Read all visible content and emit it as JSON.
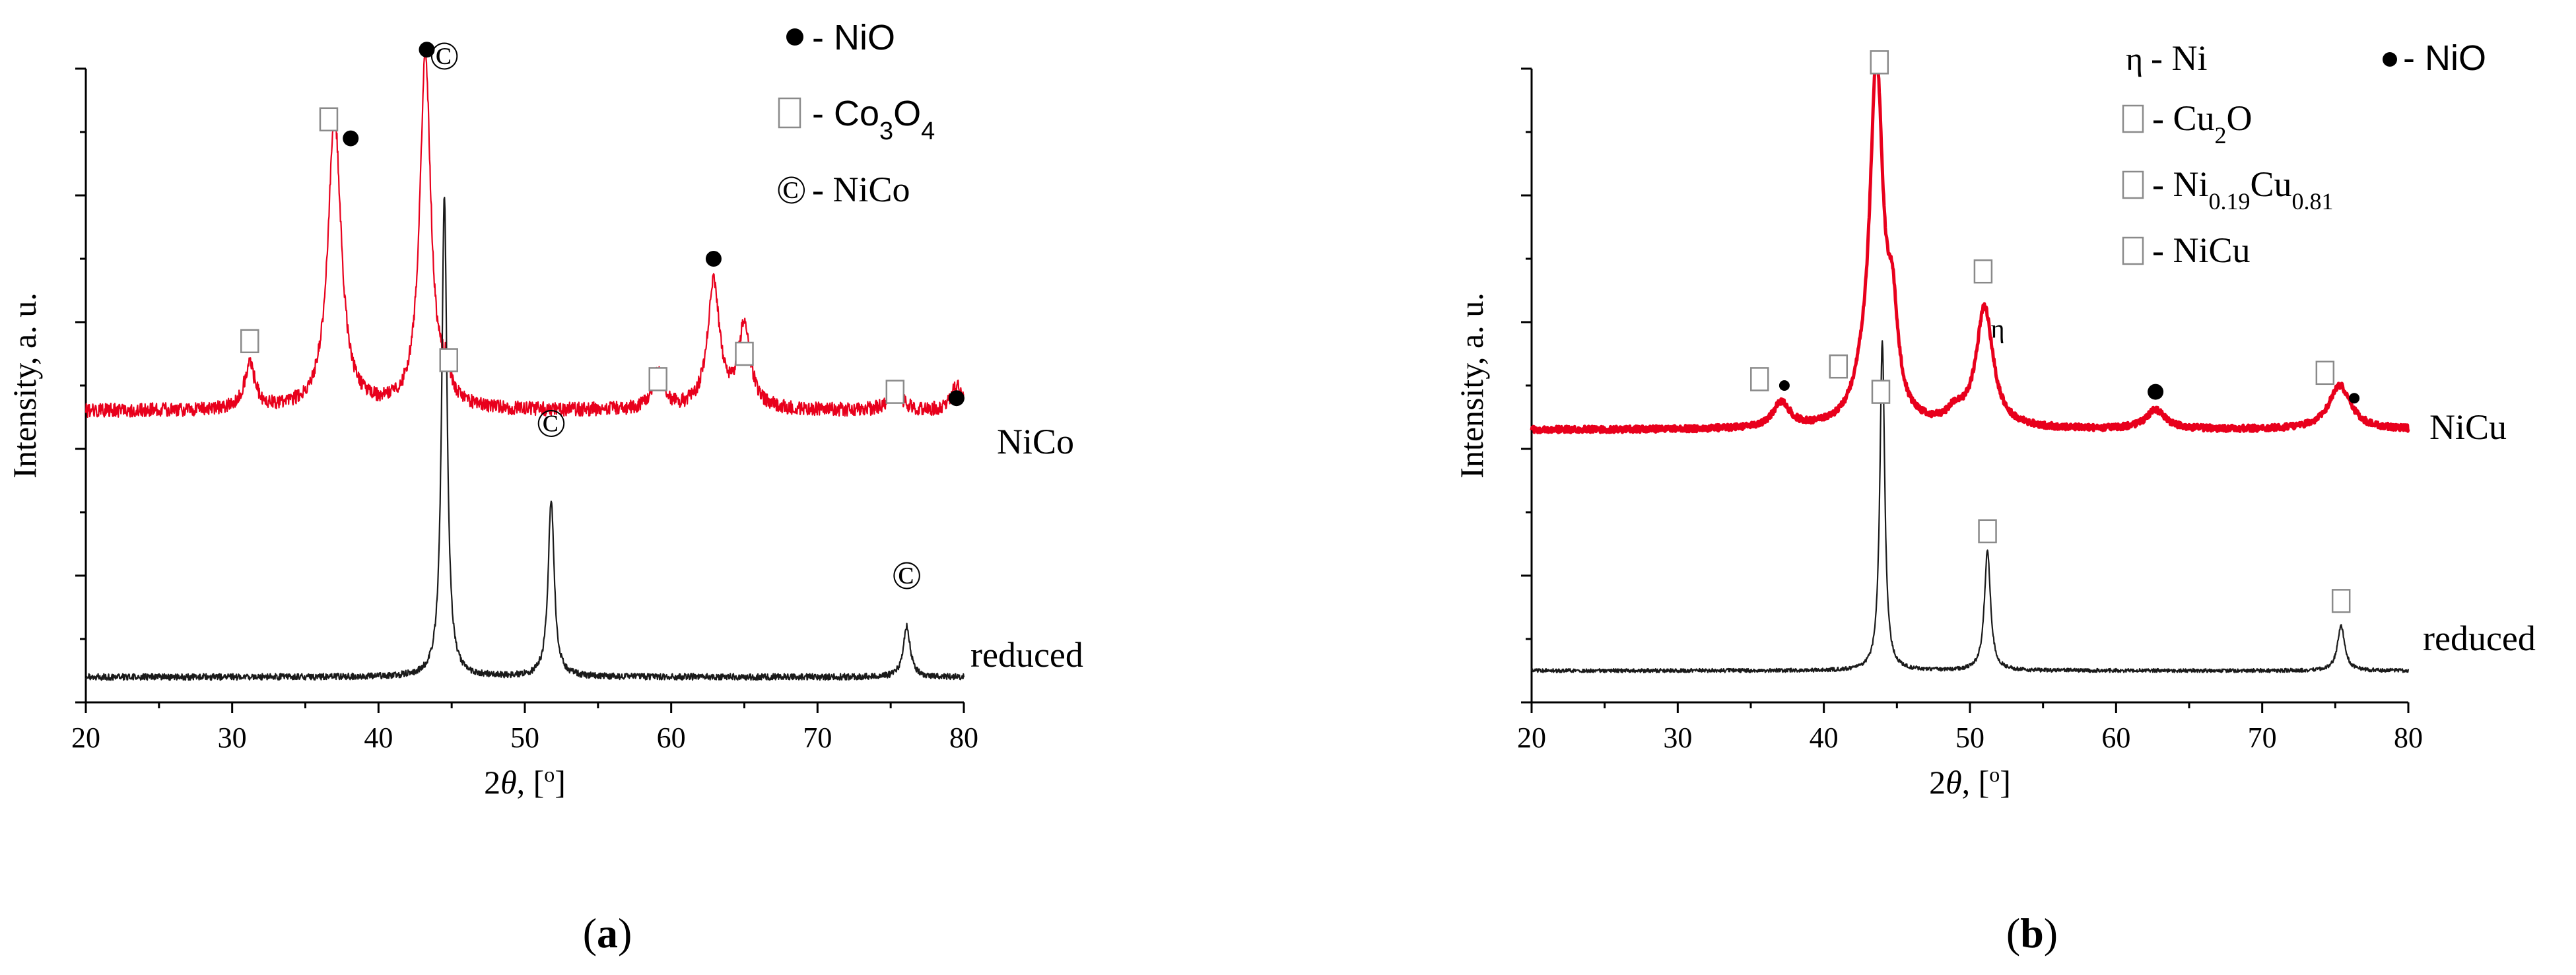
{
  "figure": {
    "panels": [
      "(a)",
      "(b)"
    ]
  },
  "chart_data": [
    {
      "type": "line",
      "panel_label": "a",
      "xlabel": "2θ, [°]",
      "xlabel_parts": {
        "theta_prefix": "2",
        "theta": "θ",
        "rest": ", [",
        "deg": "o",
        "close": "]"
      },
      "ylabel": "Intensity, a. u.",
      "xlim": [
        20,
        80
      ],
      "xticks": [
        20,
        30,
        40,
        50,
        60,
        70,
        80
      ],
      "ylim": [
        0,
        100
      ],
      "yticks_minor": true,
      "legend": {
        "placement": "top-right",
        "items": [
          {
            "symbol": "dot",
            "text": "- NiO"
          },
          {
            "symbol": "box",
            "text_parts": [
              "- Co",
              "3",
              "O",
              "4"
            ]
          },
          {
            "symbol": "copyright",
            "glyph": "©",
            "text": "- NiCo"
          }
        ]
      },
      "series": [
        {
          "name": "NiCo",
          "color": "#e8001c",
          "baseline": 46,
          "noise": 1.1,
          "peaks": [
            {
              "x": 31.2,
              "h": 7,
              "w": 0.45
            },
            {
              "x": 37.0,
              "h": 46,
              "w": 0.55
            },
            {
              "x": 43.2,
              "h": 56,
              "w": 0.45
            },
            {
              "x": 44.6,
              "h": 4,
              "w": 0.4
            },
            {
              "x": 59.1,
              "h": 6,
              "w": 0.45
            },
            {
              "x": 62.9,
              "h": 20,
              "w": 0.5
            },
            {
              "x": 65.0,
              "h": 13,
              "w": 0.5
            },
            {
              "x": 75.3,
              "h": 4,
              "w": 0.45
            },
            {
              "x": 79.5,
              "h": 4,
              "w": 0.4
            }
          ],
          "markers": [
            {
              "x": 31.2,
              "y": 57,
              "symbol": "box"
            },
            {
              "x": 36.6,
              "y": 92,
              "symbol": "box"
            },
            {
              "x": 38.1,
              "y": 89,
              "symbol": "dot"
            },
            {
              "x": 43.3,
              "y": 103,
              "symbol": "dot"
            },
            {
              "x": 44.8,
              "y": 54,
              "symbol": "box"
            },
            {
              "x": 59.1,
              "y": 51,
              "symbol": "box"
            },
            {
              "x": 62.9,
              "y": 70,
              "symbol": "dot"
            },
            {
              "x": 65.0,
              "y": 55,
              "symbol": "box"
            },
            {
              "x": 75.3,
              "y": 49,
              "symbol": "box"
            },
            {
              "x": 79.5,
              "y": 48,
              "symbol": "dot"
            }
          ]
        },
        {
          "name": "reduced",
          "color": "#1a1a1a",
          "baseline": 4,
          "noise": 0.5,
          "peaks": [
            {
              "x": 44.5,
              "h": 76,
              "w": 0.22
            },
            {
              "x": 51.8,
              "h": 28,
              "w": 0.25
            },
            {
              "x": 76.1,
              "h": 8,
              "w": 0.28
            }
          ],
          "markers": [
            {
              "x": 44.5,
              "y": 102,
              "symbol": "copyright"
            },
            {
              "x": 51.8,
              "y": 44,
              "symbol": "copyright"
            },
            {
              "x": 76.1,
              "y": 20,
              "symbol": "copyright"
            }
          ]
        }
      ]
    },
    {
      "type": "line",
      "panel_label": "b",
      "xlabel": "2θ, [°]",
      "xlabel_parts": {
        "theta_prefix": "2",
        "theta": "θ",
        "rest": ", [",
        "deg": "o",
        "close": "]"
      },
      "ylabel": "Intensity, a. u.",
      "xlim": [
        20,
        80
      ],
      "xticks": [
        20,
        30,
        40,
        50,
        60,
        70,
        80
      ],
      "ylim": [
        0,
        100
      ],
      "yticks_minor": true,
      "legend": {
        "placement": "top-right",
        "items": [
          {
            "symbol": "eta",
            "glyph": "η",
            "text": "- Ni"
          },
          {
            "symbol": "dot",
            "text": "- NiO"
          },
          {
            "symbol": "box",
            "text_parts": [
              "- Cu",
              "2",
              "O"
            ]
          },
          {
            "symbol": "box",
            "text_parts": [
              "- Ni",
              "0.19",
              "Cu",
              "0.81"
            ]
          },
          {
            "symbol": "box",
            "text": "- NiCu"
          }
        ]
      },
      "series": [
        {
          "name": "NiCu",
          "color": "#e8001c",
          "baseline": 43,
          "noise": 0.5,
          "peaks": [
            {
              "x": 37.1,
              "h": 4,
              "w": 0.7
            },
            {
              "x": 42.5,
              "h": 3,
              "w": 0.7
            },
            {
              "x": 43.6,
              "h": 56,
              "w": 0.55
            },
            {
              "x": 44.7,
              "h": 14,
              "w": 0.45
            },
            {
              "x": 49.0,
              "h": 2,
              "w": 0.6
            },
            {
              "x": 51.0,
              "h": 19,
              "w": 0.7
            },
            {
              "x": 62.7,
              "h": 3,
              "w": 0.8
            },
            {
              "x": 75.3,
              "h": 7,
              "w": 0.9
            }
          ],
          "markers": [
            {
              "x": 35.6,
              "y": 51,
              "symbol": "box"
            },
            {
              "x": 37.3,
              "y": 50,
              "symbol": "dot-small"
            },
            {
              "x": 41.0,
              "y": 53,
              "symbol": "box"
            },
            {
              "x": 43.8,
              "y": 101,
              "symbol": "box"
            },
            {
              "x": 43.9,
              "y": 49,
              "symbol": "box"
            },
            {
              "x": 50.9,
              "y": 68,
              "symbol": "box"
            },
            {
              "x": 51.9,
              "y": 59,
              "symbol": "eta"
            },
            {
              "x": 62.7,
              "y": 49,
              "symbol": "dot"
            },
            {
              "x": 74.3,
              "y": 52,
              "symbol": "box"
            },
            {
              "x": 76.3,
              "y": 48,
              "symbol": "dot-small"
            }
          ]
        },
        {
          "name": "reduced",
          "color": "#1a1a1a",
          "baseline": 5,
          "noise": 0.3,
          "peaks": [
            {
              "x": 44.0,
              "h": 52,
              "w": 0.2
            },
            {
              "x": 51.2,
              "h": 19,
              "w": 0.25
            },
            {
              "x": 75.4,
              "h": 7,
              "w": 0.3
            }
          ],
          "markers": [
            {
              "x": 51.2,
              "y": 27,
              "symbol": "box"
            },
            {
              "x": 75.4,
              "y": 16,
              "symbol": "box"
            }
          ]
        }
      ]
    }
  ]
}
